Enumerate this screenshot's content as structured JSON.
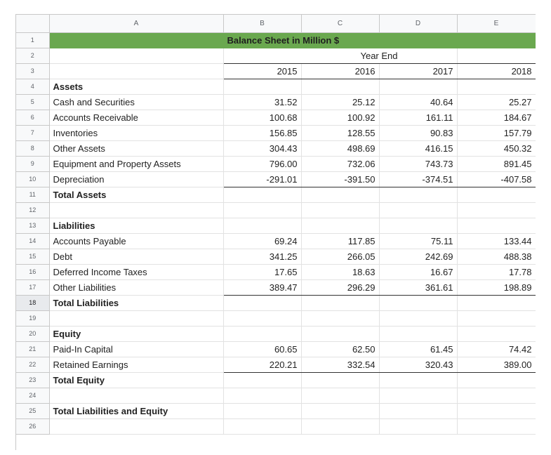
{
  "columns": [
    "A",
    "B",
    "C",
    "D",
    "E"
  ],
  "title": "Balance Sheet in Million $",
  "year_end_label": "Year End",
  "years": [
    "2015",
    "2016",
    "2017",
    "2018"
  ],
  "row_numbers": [
    "1",
    "2",
    "3",
    "4",
    "5",
    "6",
    "7",
    "8",
    "9",
    "10",
    "11",
    "12",
    "13",
    "14",
    "15",
    "16",
    "17",
    "18",
    "19",
    "20",
    "21",
    "22",
    "23",
    "24",
    "25",
    "26"
  ],
  "selected_row": "18",
  "rows": {
    "r4": {
      "label": "Assets"
    },
    "r5": {
      "label": "Cash and Securities",
      "values": [
        "31.52",
        "25.12",
        "40.64",
        "25.27"
      ]
    },
    "r6": {
      "label": "Accounts Receivable",
      "values": [
        "100.68",
        "100.92",
        "161.11",
        "184.67"
      ]
    },
    "r7": {
      "label": "Inventories",
      "values": [
        "156.85",
        "128.55",
        "90.83",
        "157.79"
      ]
    },
    "r8": {
      "label": "Other Assets",
      "values": [
        "304.43",
        "498.69",
        "416.15",
        "450.32"
      ]
    },
    "r9": {
      "label": "Equipment and Property Assets",
      "values": [
        "796.00",
        "732.06",
        "743.73",
        "891.45"
      ]
    },
    "r10": {
      "label": "Depreciation",
      "values": [
        "-291.01",
        "-391.50",
        "-374.51",
        "-407.58"
      ]
    },
    "r11": {
      "label": "Total Assets"
    },
    "r13": {
      "label": "Liabilities"
    },
    "r14": {
      "label": "Accounts Payable",
      "values": [
        "69.24",
        "117.85",
        "75.11",
        "133.44"
      ]
    },
    "r15": {
      "label": "Debt",
      "values": [
        "341.25",
        "266.05",
        "242.69",
        "488.38"
      ]
    },
    "r16": {
      "label": "Deferred Income Taxes",
      "values": [
        "17.65",
        "18.63",
        "16.67",
        "17.78"
      ]
    },
    "r17": {
      "label": "Other Liabilities",
      "values": [
        "389.47",
        "296.29",
        "361.61",
        "198.89"
      ]
    },
    "r18": {
      "label": "Total Liabilities"
    },
    "r20": {
      "label": "Equity"
    },
    "r21": {
      "label": "Paid-In Capital",
      "values": [
        "60.65",
        "62.50",
        "61.45",
        "74.42"
      ]
    },
    "r22": {
      "label": "Retained Earnings",
      "values": [
        "220.21",
        "332.54",
        "320.43",
        "389.00"
      ]
    },
    "r23": {
      "label": "Total Equity"
    },
    "r25": {
      "label": "Total Liabilities and Equity"
    }
  },
  "colors": {
    "title_fill": "#6aa84f",
    "header_fill": "#f8f9fa",
    "grid": "#e2e2e2"
  }
}
